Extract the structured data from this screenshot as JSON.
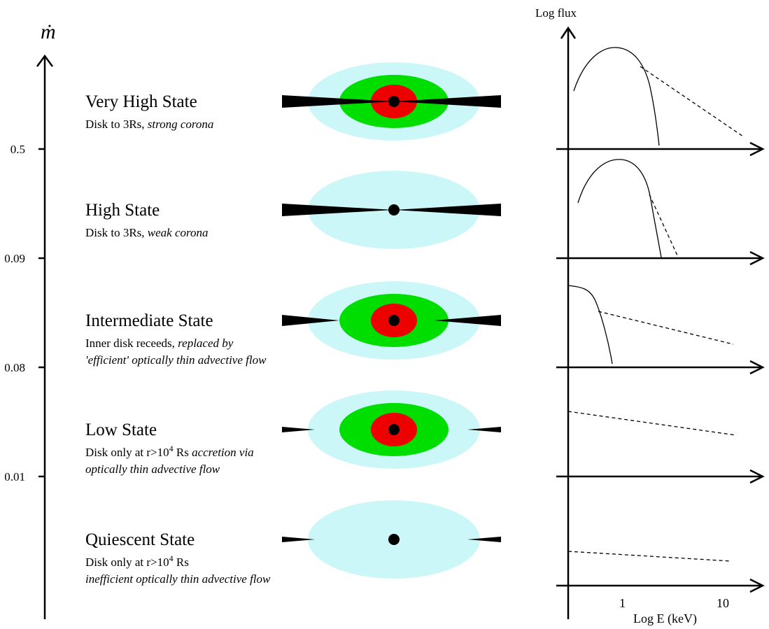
{
  "axis": {
    "label": "ṁ",
    "ticks": [
      "0.5",
      "0.09",
      "0.08",
      "0.01"
    ]
  },
  "states": [
    {
      "title": "Very High State",
      "lines": [
        [
          {
            "t": "Disk to 3Rs, "
          },
          {
            "t": "strong corona",
            "i": true
          }
        ]
      ]
    },
    {
      "title": "High State",
      "lines": [
        [
          {
            "t": "Disk to 3Rs, "
          },
          {
            "t": "weak corona",
            "i": true
          }
        ]
      ]
    },
    {
      "title": "Intermediate State",
      "lines": [
        [
          {
            "t": "Inner disk receeds, "
          },
          {
            "t": "replaced by",
            "i": true
          }
        ],
        [
          {
            "t": "'efficient' optically thin advective flow",
            "i": true
          }
        ]
      ]
    },
    {
      "title": "Low State",
      "lines": [
        [
          {
            "t": "Disk only at r>10"
          },
          {
            "t": "4",
            "sup": true
          },
          {
            "t": " Rs  "
          },
          {
            "t": "accretion via",
            "i": true
          }
        ],
        [
          {
            "t": "optically thin advective flow",
            "i": true
          }
        ]
      ]
    },
    {
      "title": "Quiescent State",
      "lines": [
        [
          {
            "t": "Disk only at r>10"
          },
          {
            "t": "4",
            "sup": true
          },
          {
            "t": " Rs"
          }
        ],
        [
          {
            "t": "inefficient optically thin advective flow",
            "i": true
          }
        ]
      ]
    }
  ],
  "spectrum": {
    "y_label": "Log flux",
    "x_label": "Log E (keV)",
    "x_ticks": [
      "1",
      "10"
    ]
  }
}
